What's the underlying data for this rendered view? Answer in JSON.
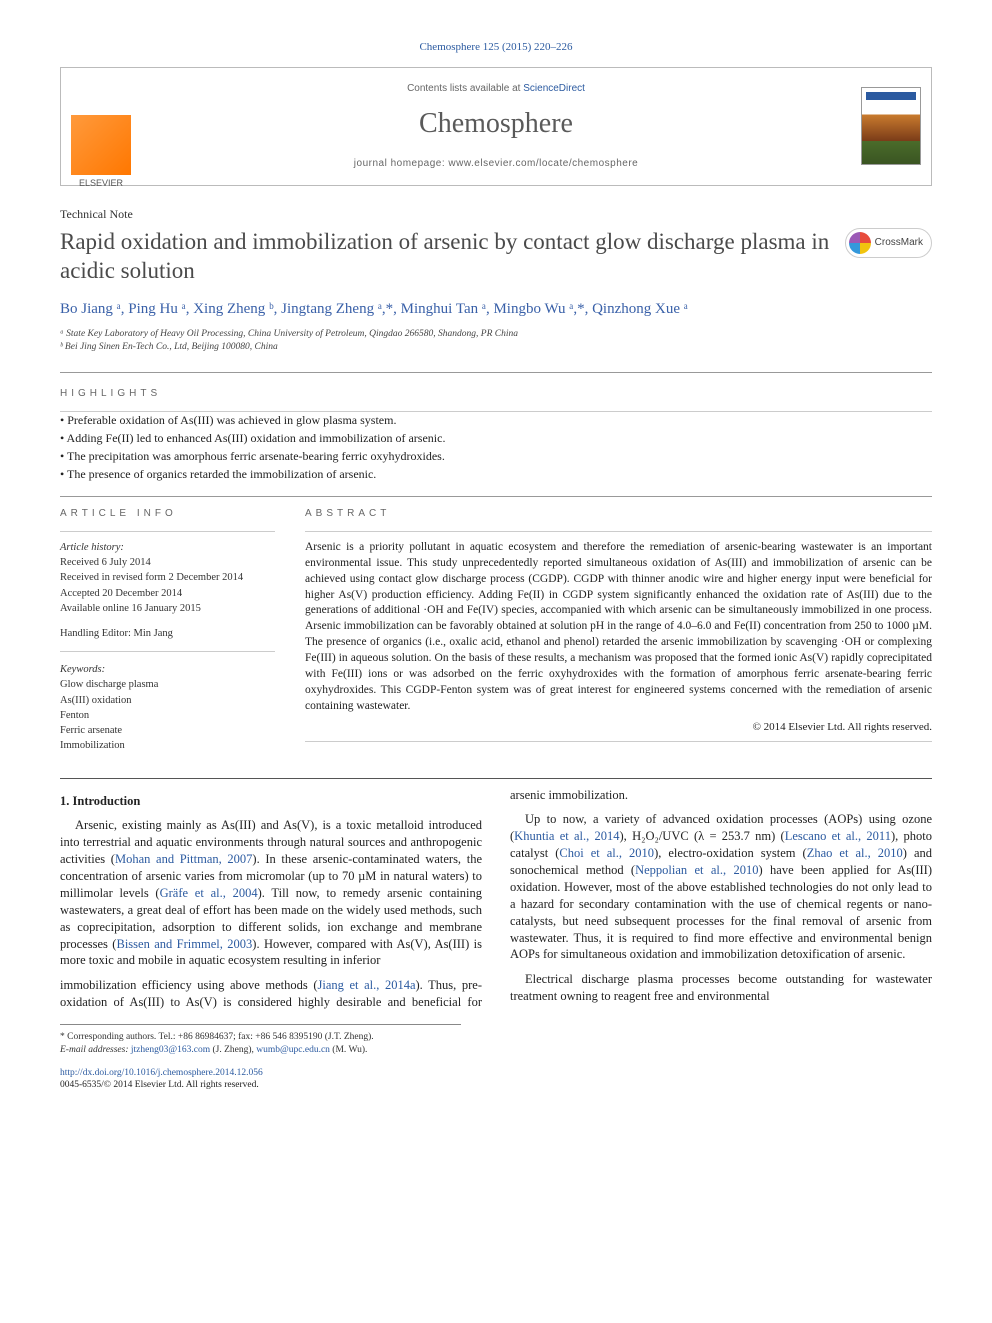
{
  "citation": "Chemosphere 125 (2015) 220–226",
  "header": {
    "contents_prefix": "Contents lists available at ",
    "contents_link": "ScienceDirect",
    "journal": "Chemosphere",
    "homepage_prefix": "journal homepage: ",
    "homepage": "www.elsevier.com/locate/chemosphere",
    "publisher": "ELSEVIER",
    "cover_label": "Chemosphere"
  },
  "article_type": "Technical Note",
  "title": "Rapid oxidation and immobilization of arsenic by contact glow discharge plasma in acidic solution",
  "crossmark": "CrossMark",
  "authors_html": "Bo Jiang ᵃ, Ping Hu ᵃ, Xing Zheng ᵇ, Jingtang Zheng ᵃ,*, Minghui Tan ᵃ, Mingbo Wu ᵃ,*, Qinzhong Xue ᵃ",
  "affiliations": [
    "ᵃ State Key Laboratory of Heavy Oil Processing, China University of Petroleum, Qingdao 266580, Shandong, PR China",
    "ᵇ Bei Jing Sinen En-Tech Co., Ltd, Beijing 100080, China"
  ],
  "highlights_head": "HIGHLIGHTS",
  "highlights": [
    "Preferable oxidation of As(III) was achieved in glow plasma system.",
    "Adding Fe(II) led to enhanced As(III) oxidation and immobilization of arsenic.",
    "The precipitation was amorphous ferric arsenate-bearing ferric oxyhydroxides.",
    "The presence of organics retarded the immobilization of arsenic."
  ],
  "info_head": "ARTICLE INFO",
  "abstract_head": "ABSTRACT",
  "history_label": "Article history:",
  "history": [
    "Received 6 July 2014",
    "Received in revised form 2 December 2014",
    "Accepted 20 December 2014",
    "Available online 16 January 2015"
  ],
  "handling_editor": "Handling Editor: Min Jang",
  "keywords_label": "Keywords:",
  "keywords": [
    "Glow discharge plasma",
    "As(III) oxidation",
    "Fenton",
    "Ferric arsenate",
    "Immobilization"
  ],
  "abstract": "Arsenic is a priority pollutant in aquatic ecosystem and therefore the remediation of arsenic-bearing wastewater is an important environmental issue. This study unprecedentedly reported simultaneous oxidation of As(III) and immobilization of arsenic can be achieved using contact glow discharge process (CGDP). CGDP with thinner anodic wire and higher energy input were beneficial for higher As(V) production efficiency. Adding Fe(II) in CGDP system significantly enhanced the oxidation rate of As(III) due to the generations of additional ·OH and Fe(IV) species, accompanied with which arsenic can be simultaneously immobilized in one process. Arsenic immobilization can be favorably obtained at solution pH in the range of 4.0–6.0 and Fe(II) concentration from 250 to 1000 µM. The presence of organics (i.e., oxalic acid, ethanol and phenol) retarded the arsenic immobilization by scavenging ·OH or complexing Fe(III) in aqueous solution. On the basis of these results, a mechanism was proposed that the formed ionic As(V) rapidly coprecipitated with Fe(III) ions or was adsorbed on the ferric oxyhydroxides with the formation of amorphous ferric arsenate-bearing ferric oxyhydroxides. This CGDP-Fenton system was of great interest for engineered systems concerned with the remediation of arsenic containing wastewater.",
  "copyright": "© 2014 Elsevier Ltd. All rights reserved.",
  "intro_head": "1. Introduction",
  "intro_paras": [
    "Arsenic, existing mainly as As(III) and As(V), is a toxic metalloid introduced into terrestrial and aquatic environments through natural sources and anthropogenic activities (<span class='ref-link'>Mohan and Pittman, 2007</span>). In these arsenic-contaminated waters, the concentration of arsenic varies from micromolar (up to 70 µM in natural waters) to millimolar levels (<span class='ref-link'>Gräfe et al., 2004</span>). Till now, to remedy arsenic containing wastewaters, a great deal of effort has been made on the widely used methods, such as coprecipitation, adsorption to different solids, ion exchange and membrane processes (<span class='ref-link'>Bissen and Frimmel, 2003</span>). However, compared with As(V), As(III) is more toxic and mobile in aquatic ecosystem resulting in inferior",
    "immobilization efficiency using above methods (<span class='ref-link'>Jiang et al., 2014a</span>). Thus, pre-oxidation of As(III) to As(V) is considered highly desirable and beneficial for arsenic immobilization.",
    "Up to now, a variety of advanced oxidation processes (AOPs) using ozone (<span class='ref-link'>Khuntia et al., 2014</span>), H₂O₂/UVC (λ = 253.7 nm) (<span class='ref-link'>Lescano et al., 2011</span>), photo catalyst (<span class='ref-link'>Choi et al., 2010</span>), electro-oxidation system (<span class='ref-link'>Zhao et al., 2010</span>) and sonochemical method (<span class='ref-link'>Neppolian et al., 2010</span>) have been applied for As(III) oxidation. However, most of the above established technologies do not only lead to a hazard for secondary contamination with the use of chemical regents or nano-catalysts, but need subsequent processes for the final removal of arsenic from wastewater. Thus, it is required to find more effective and environmental benign AOPs for simultaneous oxidation and immobilization detoxification of arsenic.",
    "Electrical discharge plasma processes become outstanding for wastewater treatment owning to reagent free and environmental"
  ],
  "footnote_corr": "* Corresponding authors. Tel.: +86 86984637; fax: +86 546 8395190 (J.T. Zheng).",
  "footnote_email_label": "E-mail addresses: ",
  "footnote_emails": "jtzheng03@163.com (J. Zheng), wumb@upc.edu.cn (M. Wu).",
  "doi": "http://dx.doi.org/10.1016/j.chemosphere.2014.12.056",
  "issn_line": "0045-6535/© 2014 Elsevier Ltd. All rights reserved.",
  "colors": {
    "link": "#2b5aa0",
    "title_gray": "#4a4a4a",
    "author_blue": "#3960a8",
    "orange": "#ff7700"
  }
}
